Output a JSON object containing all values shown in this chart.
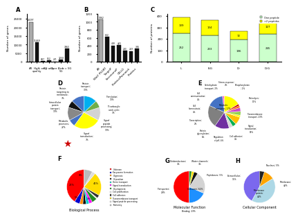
{
  "A": {
    "categories": [
      "All",
      "High\nquality",
      "L only",
      "5G only",
      "Over L",
      "Over\n5G",
      "L = 5G"
    ],
    "values": [
      23297,
      11469,
      607,
      852,
      271,
      1250,
      7863
    ],
    "bar_colors": [
      "#aaaaaa",
      "#111111",
      "#111111",
      "#111111",
      "#111111",
      "#111111",
      "#111111"
    ],
    "ylabel": "Number of genes",
    "label": "A",
    "ylim": [
      0,
      28000
    ]
  },
  "B": {
    "categories": [
      "All",
      "WoLF PSORT",
      "TargetP",
      "SecretomeP",
      "CELLO",
      "Phobius/Patmatch",
      "Phobius"
    ],
    "values": [
      1062,
      622,
      408,
      423,
      283,
      269,
      336
    ],
    "bar_colors": [
      "#aaaaaa",
      "#111111",
      "#111111",
      "#111111",
      "#111111",
      "#111111",
      "#111111"
    ],
    "ylabel": "Number of genes",
    "label": "B",
    "ylim": [
      0,
      1200
    ]
  },
  "C": {
    "categories": [
      "IL",
      "ISG",
      "Dr",
      "DrG"
    ],
    "one_peptide": [
      252,
      233,
      196,
      245
    ],
    "two_plus_peptide": [
      139,
      134,
      72,
      127
    ],
    "color_one": "#ccffcc",
    "color_two": "#ffff00",
    "ylabel": "Number of proteins",
    "label": "C",
    "ylim": [
      0,
      420
    ],
    "legend_one": "One peptide",
    "legend_two": ">2 peptides"
  },
  "D": {
    "sizes": [
      13,
      7,
      13,
      7,
      27,
      13,
      7,
      13
    ],
    "colors": [
      "#4472c4",
      "#111111",
      "#808080",
      "#4472c4",
      "#ffff00",
      "#d3d3d3",
      "#70ad47",
      "#00b0f0"
    ],
    "labels": [
      "Translation;\n13%",
      "Tricarboxylic\nacid cycle;\n7%",
      "Signal\npeptide\nprocessing;\n13%",
      "Signal\ntransduction;\n7%",
      "Metabolic\nprocesses;\n27%",
      "Intracellular\nprotein\ntransport;\n13%",
      "Protein\ntargeting to\nmembrane;\n7%",
      "Protein\ntransport;\n13%"
    ],
    "label": "D",
    "star_color": "#cc0000"
  },
  "E": {
    "sizes": [
      2,
      17,
      23,
      15,
      4,
      4,
      8,
      2,
      4,
      4,
      2,
      2,
      17
    ],
    "colors": [
      "#ff0099",
      "#4472c4",
      "#808080",
      "#7030a0",
      "#d9d9d9",
      "#00b050",
      "#ffc000",
      "#ffff00",
      "#92d050",
      "#cc44cc",
      "#ff6600",
      "#cc0000",
      "#ffff00"
    ],
    "labels": [
      "Phosphorylation\n; 2%",
      "Proteolysis;\n17%",
      "Transmembrane\ntransport; 23%",
      "Signal\ntransduction;\n15%",
      "Cell adhesion;\n4%",
      "Regulation\nof pH; 4%",
      "Protein\nglycosylation;\n8%",
      "Transcription;\n2%",
      "Cell\nhomeostasis;\n4%",
      "Cell\ncommunication;\n4%",
      "Carbohydrate\ntransport; 2%",
      "Stress response;\n2%",
      "Metabolic\nprocesses; 17%"
    ],
    "label": "E",
    "star_color": "#ffffff"
  },
  "F": {
    "labels": [
      "Unknown",
      "Karyosome formation",
      "Oogenesis",
      "Oviposition",
      "Heme transport",
      "Signal transduction",
      "Development",
      "Cell proliferation",
      "Cell adhesion",
      "Transmembrane transport",
      "Signal peptide processing",
      "Immunity"
    ],
    "sizes": [
      41,
      5,
      3,
      3,
      3,
      3,
      5,
      1,
      3,
      22,
      3,
      8
    ],
    "colors": [
      "#ff0000",
      "#0000cd",
      "#ff8c00",
      "#111111",
      "#00cccc",
      "#ff00ff",
      "#228b22",
      "#f0f0f0",
      "#333333",
      "#ffdd00",
      "#dddddd",
      "#bbbbbb"
    ],
    "label": "F",
    "xlabel": "Biological Process",
    "pct_labels": [
      "41%",
      "5%",
      "",
      "",
      "",
      "",
      "5%",
      "",
      "",
      "22%",
      "",
      "8%"
    ]
  },
  "G": {
    "labels": [
      "Unknown; 62%",
      "Binding; 23%",
      "Transporter;\n28%",
      "Peptidases; 5%",
      "Oxidoreductase;\n3%",
      "Water channels;\n3%"
    ],
    "sizes": [
      62,
      23,
      28,
      5,
      3,
      3
    ],
    "colors": [
      "#ff0000",
      "#1e90ff",
      "#d3d3d3",
      "#111111",
      "#ffdd00",
      "#228b22"
    ],
    "label": "G",
    "xlabel": "Molecular Function"
  },
  "H": {
    "labels": [
      "Membrane;\n42%",
      "Membrane\nprotein;\n42%",
      "Extracellular;\n11%",
      "Nucleus; 5%"
    ],
    "sizes": [
      42,
      42,
      11,
      5
    ],
    "colors": [
      "#7b68ee",
      "#add8e6",
      "#ffa500",
      "#222222"
    ],
    "label": "H",
    "xlabel": "Cellular Component"
  }
}
